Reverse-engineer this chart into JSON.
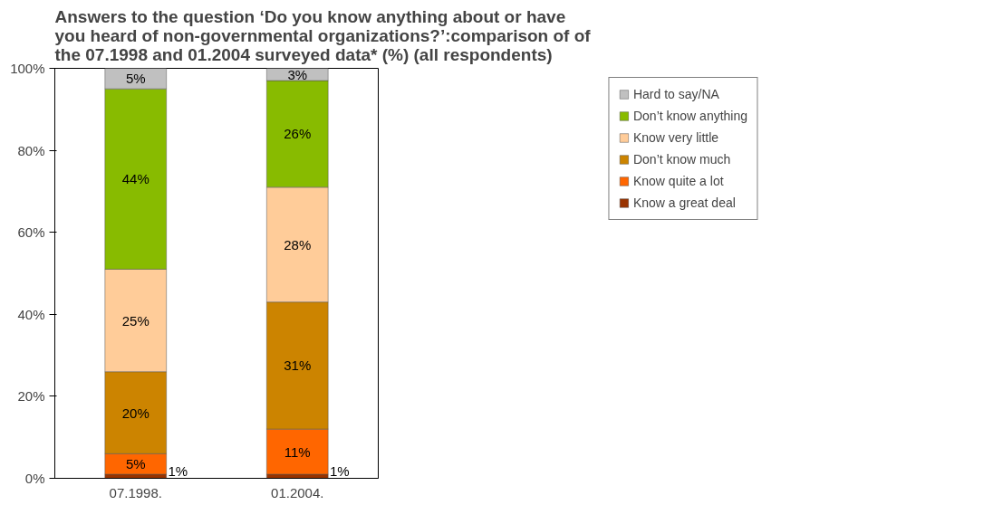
{
  "chart_data": {
    "type": "bar",
    "stacked": true,
    "title": "Answers to the question ‘Do you know anything about or have you heard of non-governmental organizations?’:comparison of of the 07.1998 and 01.2004 surveyed data* (%) (all respondents)",
    "categories": [
      "07.1998.",
      "01.2004."
    ],
    "series": [
      {
        "name": "Know a great deal",
        "color": "#993300",
        "values": [
          1,
          1
        ],
        "value_labels": [
          "1%",
          "1%"
        ]
      },
      {
        "name": "Know quite a lot",
        "color": "#ff6600",
        "values": [
          5,
          11
        ],
        "value_labels": [
          "5%",
          "11%"
        ]
      },
      {
        "name": "Don’t know much",
        "color": "#cc8400",
        "values": [
          20,
          31
        ],
        "value_labels": [
          "20%",
          "31%"
        ]
      },
      {
        "name": "Know very little",
        "color": "#ffcc99",
        "values": [
          25,
          28
        ],
        "value_labels": [
          "25%",
          "28%"
        ]
      },
      {
        "name": "Don’t know anything",
        "color": "#88bb00",
        "values": [
          44,
          26
        ],
        "value_labels": [
          "44%",
          "26%"
        ]
      },
      {
        "name": "Hard to say/NA",
        "color": "#c0c0c0",
        "values": [
          5,
          3
        ],
        "value_labels": [
          "5%",
          "3%"
        ]
      }
    ],
    "ylim": [
      0,
      100
    ],
    "yticks": [
      {
        "value": 0,
        "label": "0%"
      },
      {
        "value": 20,
        "label": "20%"
      },
      {
        "value": 40,
        "label": "40%"
      },
      {
        "value": 60,
        "label": "60%"
      },
      {
        "value": 80,
        "label": "80%"
      },
      {
        "value": 100,
        "label": "100%"
      }
    ],
    "grid": false,
    "legend": "top right"
  }
}
